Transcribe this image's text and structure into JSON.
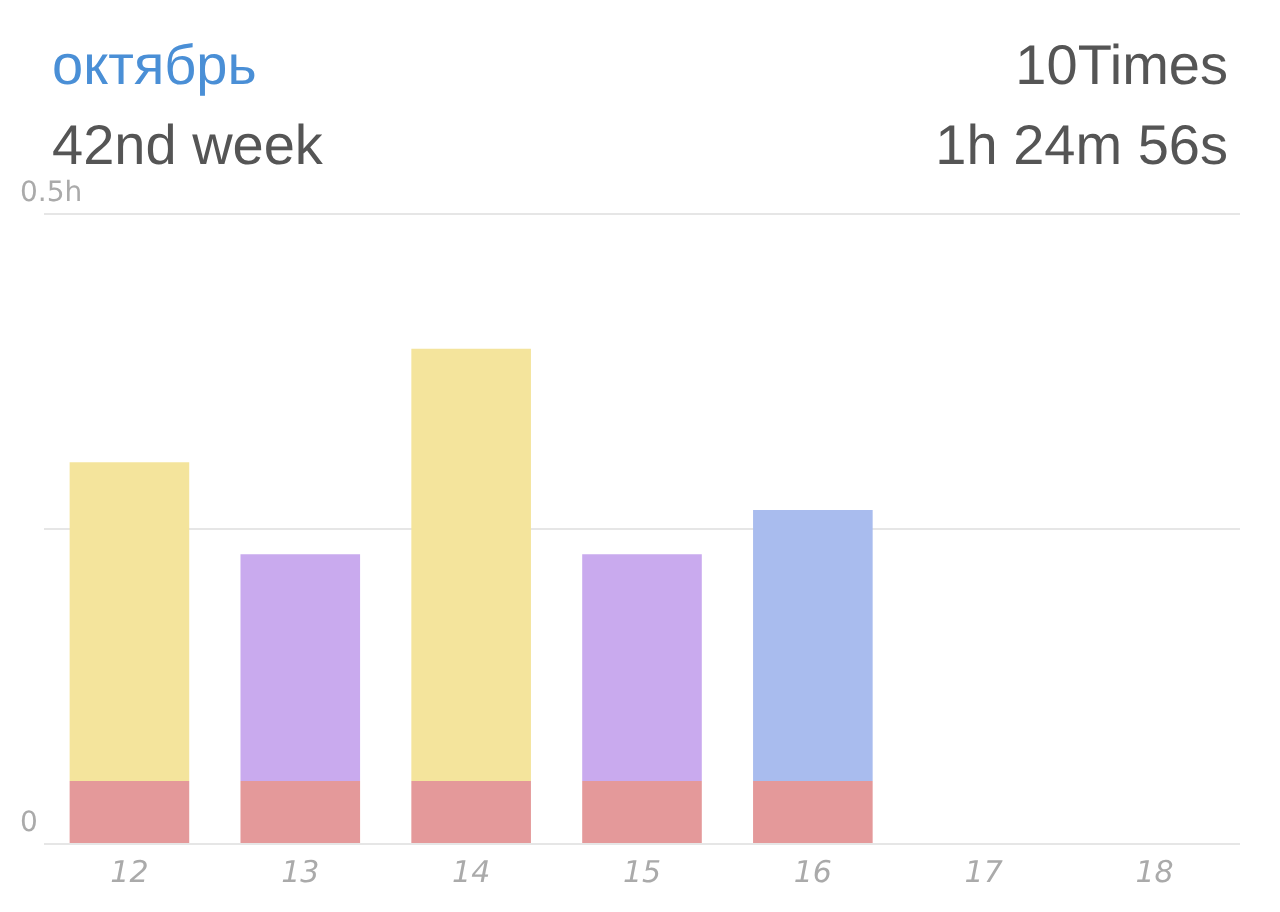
{
  "chart_data": {
    "type": "bar",
    "title": "октябрь",
    "subtitle": "42nd week",
    "annotations": [
      "10Times",
      "1h 24m 56s"
    ],
    "categories": [
      "12",
      "13",
      "14",
      "15",
      "16",
      "17",
      "18"
    ],
    "stacked": true,
    "series": [
      {
        "colors": [
          "#e4999a",
          "#e4999a",
          "#e4999a",
          "#e4999a",
          "#e4999a",
          null,
          null
        ],
        "values": [
          0.05,
          0.05,
          0.05,
          0.05,
          0.05,
          null,
          null
        ]
      },
      {
        "colors": [
          "#f4e49c",
          "#c9aaee",
          "#f4e49c",
          "#c9aaee",
          "#a9bcee",
          null,
          null
        ],
        "values": [
          0.253,
          0.18,
          0.343,
          0.18,
          0.215,
          null,
          null
        ]
      }
    ],
    "ylim": [
      0,
      0.5
    ],
    "yticks": [
      {
        "value": 0,
        "label": "0"
      },
      {
        "value": 0.25,
        "label": null
      },
      {
        "value": 0.5,
        "label": "0.5h"
      }
    ],
    "grid": "y",
    "legend": false
  }
}
